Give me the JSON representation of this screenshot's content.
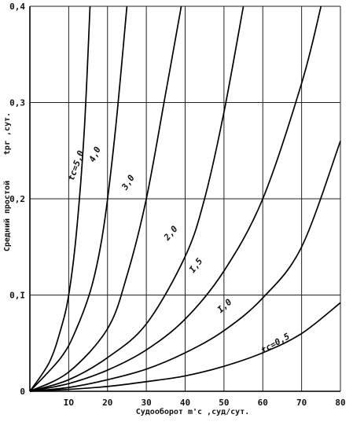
{
  "chart_data": {
    "type": "line",
    "xlabel": "Судооборот m'c ,суд/сут.",
    "ylabel": "Средний простой",
    "ylabel_symbol": "tpr ,сут.",
    "xlim": [
      0,
      80
    ],
    "ylim": [
      0,
      0.4
    ],
    "x_ticks": [
      "IO",
      "20",
      "30",
      "40",
      "50",
      "60",
      "70",
      "80"
    ],
    "x_tick_values": [
      10,
      20,
      30,
      40,
      50,
      60,
      70,
      80
    ],
    "y_ticks": [
      "0",
      "0,I",
      "0,2",
      "0,3",
      "0,4"
    ],
    "y_tick_values": [
      0,
      0.1,
      0.2,
      0.3,
      0.4
    ],
    "grid": true,
    "series": [
      {
        "name": "tc=5,0",
        "values": [
          [
            0,
            0
          ],
          [
            5,
            0.03
          ],
          [
            8,
            0.065
          ],
          [
            10,
            0.1
          ],
          [
            12,
            0.165
          ],
          [
            14,
            0.27
          ],
          [
            15.5,
            0.4
          ]
        ]
      },
      {
        "name": "4,0",
        "values": [
          [
            0,
            0
          ],
          [
            8,
            0.035
          ],
          [
            12,
            0.065
          ],
          [
            16,
            0.11
          ],
          [
            19,
            0.17
          ],
          [
            22,
            0.27
          ],
          [
            25,
            0.4
          ]
        ]
      },
      {
        "name": "3,0",
        "values": [
          [
            0,
            0
          ],
          [
            10,
            0.02
          ],
          [
            20,
            0.065
          ],
          [
            25,
            0.12
          ],
          [
            30,
            0.2
          ],
          [
            35,
            0.31
          ],
          [
            39,
            0.4
          ]
        ]
      },
      {
        "name": "2,0",
        "values": [
          [
            0,
            0
          ],
          [
            10,
            0.012
          ],
          [
            20,
            0.035
          ],
          [
            30,
            0.07
          ],
          [
            40,
            0.14
          ],
          [
            45,
            0.2
          ],
          [
            50,
            0.29
          ],
          [
            55,
            0.4
          ]
        ]
      },
      {
        "name": "I,5",
        "values": [
          [
            0,
            0
          ],
          [
            10,
            0.008
          ],
          [
            20,
            0.022
          ],
          [
            30,
            0.043
          ],
          [
            40,
            0.075
          ],
          [
            50,
            0.125
          ],
          [
            60,
            0.2
          ],
          [
            70,
            0.32
          ],
          [
            75,
            0.4
          ]
        ]
      },
      {
        "name": "I,0",
        "values": [
          [
            0,
            0
          ],
          [
            10,
            0.004
          ],
          [
            20,
            0.012
          ],
          [
            30,
            0.023
          ],
          [
            40,
            0.04
          ],
          [
            50,
            0.063
          ],
          [
            60,
            0.097
          ],
          [
            70,
            0.15
          ],
          [
            80,
            0.26
          ]
        ]
      },
      {
        "name": "tc=0,5",
        "values": [
          [
            0,
            0
          ],
          [
            10,
            0.002
          ],
          [
            20,
            0.005
          ],
          [
            30,
            0.01
          ],
          [
            40,
            0.016
          ],
          [
            50,
            0.026
          ],
          [
            60,
            0.04
          ],
          [
            70,
            0.06
          ],
          [
            80,
            0.092
          ]
        ]
      }
    ],
    "curve_labels": [
      "tc=5,0",
      "4,0",
      "3,0",
      "2,0",
      "I,5",
      "I,0",
      "tc=0,5"
    ]
  }
}
